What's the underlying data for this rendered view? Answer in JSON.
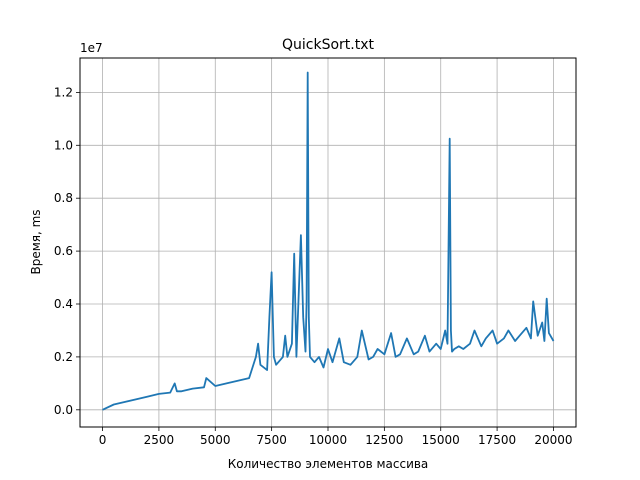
{
  "chart_data": {
    "type": "line",
    "title": "QuickSort.txt",
    "xlabel": "Количество элементов массива",
    "ylabel": "Время, ms",
    "y_offset_label": "1e7",
    "xlim": [
      -1000,
      21000
    ],
    "ylim": [
      -0.065,
      1.33
    ],
    "grid": true,
    "x_ticks": [
      0,
      2500,
      5000,
      7500,
      10000,
      12500,
      15000,
      17500,
      20000
    ],
    "y_ticks": [
      0.0,
      0.2,
      0.4,
      0.6,
      0.8,
      1.0,
      1.2
    ],
    "x_tick_labels": [
      "0",
      "2500",
      "5000",
      "7500",
      "10000",
      "12500",
      "15000",
      "17500",
      "20000"
    ],
    "y_tick_labels": [
      "0.0",
      "0.2",
      "0.4",
      "0.6",
      "0.8",
      "1.0",
      "1.2"
    ],
    "series": [
      {
        "color": "#1f77b4",
        "x": [
          0,
          500,
          1000,
          1500,
          2000,
          2500,
          3000,
          3200,
          3300,
          3500,
          4000,
          4500,
          4600,
          5000,
          5500,
          6000,
          6500,
          6800,
          6900,
          7000,
          7300,
          7400,
          7500,
          7600,
          7700,
          8000,
          8100,
          8200,
          8400,
          8500,
          8600,
          8800,
          8900,
          9000,
          9050,
          9100,
          9150,
          9200,
          9400,
          9600,
          9800,
          10000,
          10200,
          10500,
          10700,
          11000,
          11300,
          11500,
          11800,
          12000,
          12200,
          12500,
          12800,
          13000,
          13200,
          13500,
          13800,
          14000,
          14300,
          14500,
          14800,
          15000,
          15200,
          15300,
          15400,
          15450,
          15500,
          15600,
          15800,
          16000,
          16300,
          16500,
          16800,
          17000,
          17300,
          17500,
          17800,
          18000,
          18300,
          18500,
          18800,
          19000,
          19100,
          19300,
          19500,
          19600,
          19700,
          19800,
          20000
        ],
        "y": [
          0.0,
          0.02,
          0.03,
          0.04,
          0.05,
          0.06,
          0.065,
          0.1,
          0.07,
          0.07,
          0.08,
          0.085,
          0.12,
          0.09,
          0.1,
          0.11,
          0.12,
          0.2,
          0.25,
          0.17,
          0.15,
          0.35,
          0.52,
          0.2,
          0.17,
          0.2,
          0.28,
          0.2,
          0.25,
          0.59,
          0.2,
          0.66,
          0.35,
          0.22,
          0.41,
          1.275,
          0.35,
          0.2,
          0.18,
          0.2,
          0.16,
          0.23,
          0.18,
          0.27,
          0.18,
          0.17,
          0.2,
          0.3,
          0.19,
          0.2,
          0.23,
          0.21,
          0.29,
          0.2,
          0.21,
          0.27,
          0.21,
          0.22,
          0.28,
          0.22,
          0.25,
          0.23,
          0.3,
          0.25,
          1.025,
          0.3,
          0.22,
          0.23,
          0.24,
          0.23,
          0.25,
          0.3,
          0.24,
          0.27,
          0.3,
          0.25,
          0.27,
          0.3,
          0.26,
          0.28,
          0.31,
          0.27,
          0.41,
          0.28,
          0.33,
          0.26,
          0.42,
          0.29,
          0.26
        ]
      }
    ]
  }
}
